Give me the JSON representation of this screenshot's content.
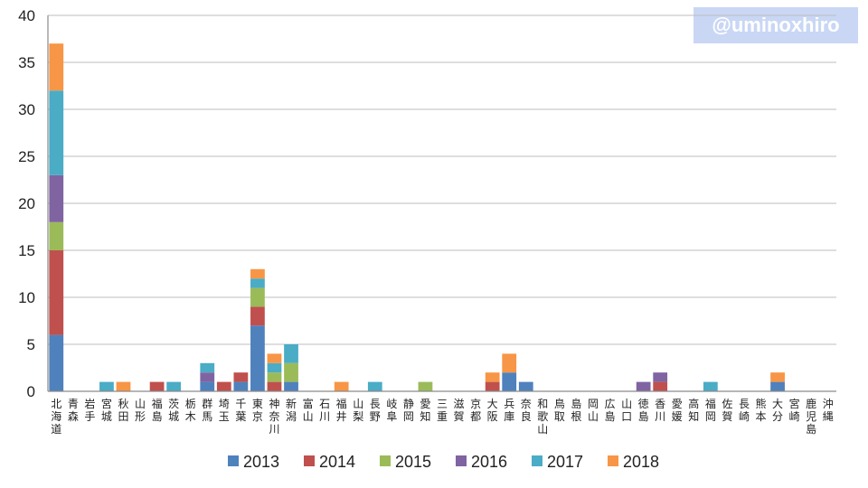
{
  "watermark": "@uminoxhiro",
  "chart_data": {
    "type": "bar",
    "stacked": true,
    "title": "",
    "xlabel": "",
    "ylabel": "",
    "ylim": [
      0,
      40
    ],
    "yticks": [
      0,
      5,
      10,
      15,
      20,
      25,
      30,
      35,
      40
    ],
    "grid": true,
    "legend_position": "bottom",
    "categories": [
      "北海道",
      "青森",
      "岩手",
      "宮城",
      "秋田",
      "山形",
      "福島",
      "茨城",
      "栃木",
      "群馬",
      "埼玉",
      "千葉",
      "東京",
      "神奈川",
      "新潟",
      "富山",
      "石川",
      "福井",
      "山梨",
      "長野",
      "岐阜",
      "静岡",
      "愛知",
      "三重",
      "滋賀",
      "京都",
      "大阪",
      "兵庫",
      "奈良",
      "和歌山",
      "鳥取",
      "島根",
      "岡山",
      "広島",
      "山口",
      "徳島",
      "香川",
      "愛媛",
      "高知",
      "福岡",
      "佐賀",
      "長崎",
      "熊本",
      "大分",
      "宮崎",
      "鹿児島",
      "沖縄"
    ],
    "series": [
      {
        "name": "2013",
        "color": "#4f81bd",
        "values": [
          6,
          0,
          0,
          0,
          0,
          0,
          0,
          0,
          0,
          1,
          0,
          1,
          7,
          0,
          1,
          0,
          0,
          0,
          0,
          0,
          0,
          0,
          0,
          0,
          0,
          0,
          0,
          2,
          1,
          0,
          0,
          0,
          0,
          0,
          0,
          0,
          0,
          0,
          0,
          0,
          0,
          0,
          0,
          1,
          0,
          0,
          0
        ]
      },
      {
        "name": "2014",
        "color": "#c0504d",
        "values": [
          9,
          0,
          0,
          0,
          0,
          0,
          1,
          0,
          0,
          0,
          1,
          1,
          2,
          1,
          0,
          0,
          0,
          0,
          0,
          0,
          0,
          0,
          0,
          0,
          0,
          0,
          1,
          0,
          0,
          0,
          0,
          0,
          0,
          0,
          0,
          0,
          1,
          0,
          0,
          0,
          0,
          0,
          0,
          0,
          0,
          0,
          0
        ]
      },
      {
        "name": "2015",
        "color": "#9bbb59",
        "values": [
          3,
          0,
          0,
          0,
          0,
          0,
          0,
          0,
          0,
          0,
          0,
          0,
          2,
          1,
          2,
          0,
          0,
          0,
          0,
          0,
          0,
          0,
          1,
          0,
          0,
          0,
          0,
          0,
          0,
          0,
          0,
          0,
          0,
          0,
          0,
          0,
          0,
          0,
          0,
          0,
          0,
          0,
          0,
          0,
          0,
          0,
          0
        ]
      },
      {
        "name": "2016",
        "color": "#8064a2",
        "values": [
          5,
          0,
          0,
          0,
          0,
          0,
          0,
          0,
          0,
          1,
          0,
          0,
          0,
          0,
          0,
          0,
          0,
          0,
          0,
          0,
          0,
          0,
          0,
          0,
          0,
          0,
          0,
          0,
          0,
          0,
          0,
          0,
          0,
          0,
          0,
          1,
          1,
          0,
          0,
          0,
          0,
          0,
          0,
          0,
          0,
          0,
          0
        ]
      },
      {
        "name": "2017",
        "color": "#4bacc6",
        "values": [
          9,
          0,
          0,
          1,
          0,
          0,
          0,
          1,
          0,
          1,
          0,
          0,
          1,
          1,
          2,
          0,
          0,
          0,
          0,
          1,
          0,
          0,
          0,
          0,
          0,
          0,
          0,
          0,
          0,
          0,
          0,
          0,
          0,
          0,
          0,
          0,
          0,
          0,
          0,
          1,
          0,
          0,
          0,
          0,
          0,
          0,
          0
        ]
      },
      {
        "name": "2018",
        "color": "#f79646",
        "values": [
          5,
          0,
          0,
          0,
          1,
          0,
          0,
          0,
          0,
          0,
          0,
          0,
          1,
          1,
          0,
          0,
          0,
          1,
          0,
          0,
          0,
          0,
          0,
          0,
          0,
          0,
          1,
          2,
          0,
          0,
          0,
          0,
          0,
          0,
          0,
          0,
          0,
          0,
          0,
          0,
          0,
          0,
          0,
          1,
          0,
          0,
          0
        ]
      }
    ]
  }
}
